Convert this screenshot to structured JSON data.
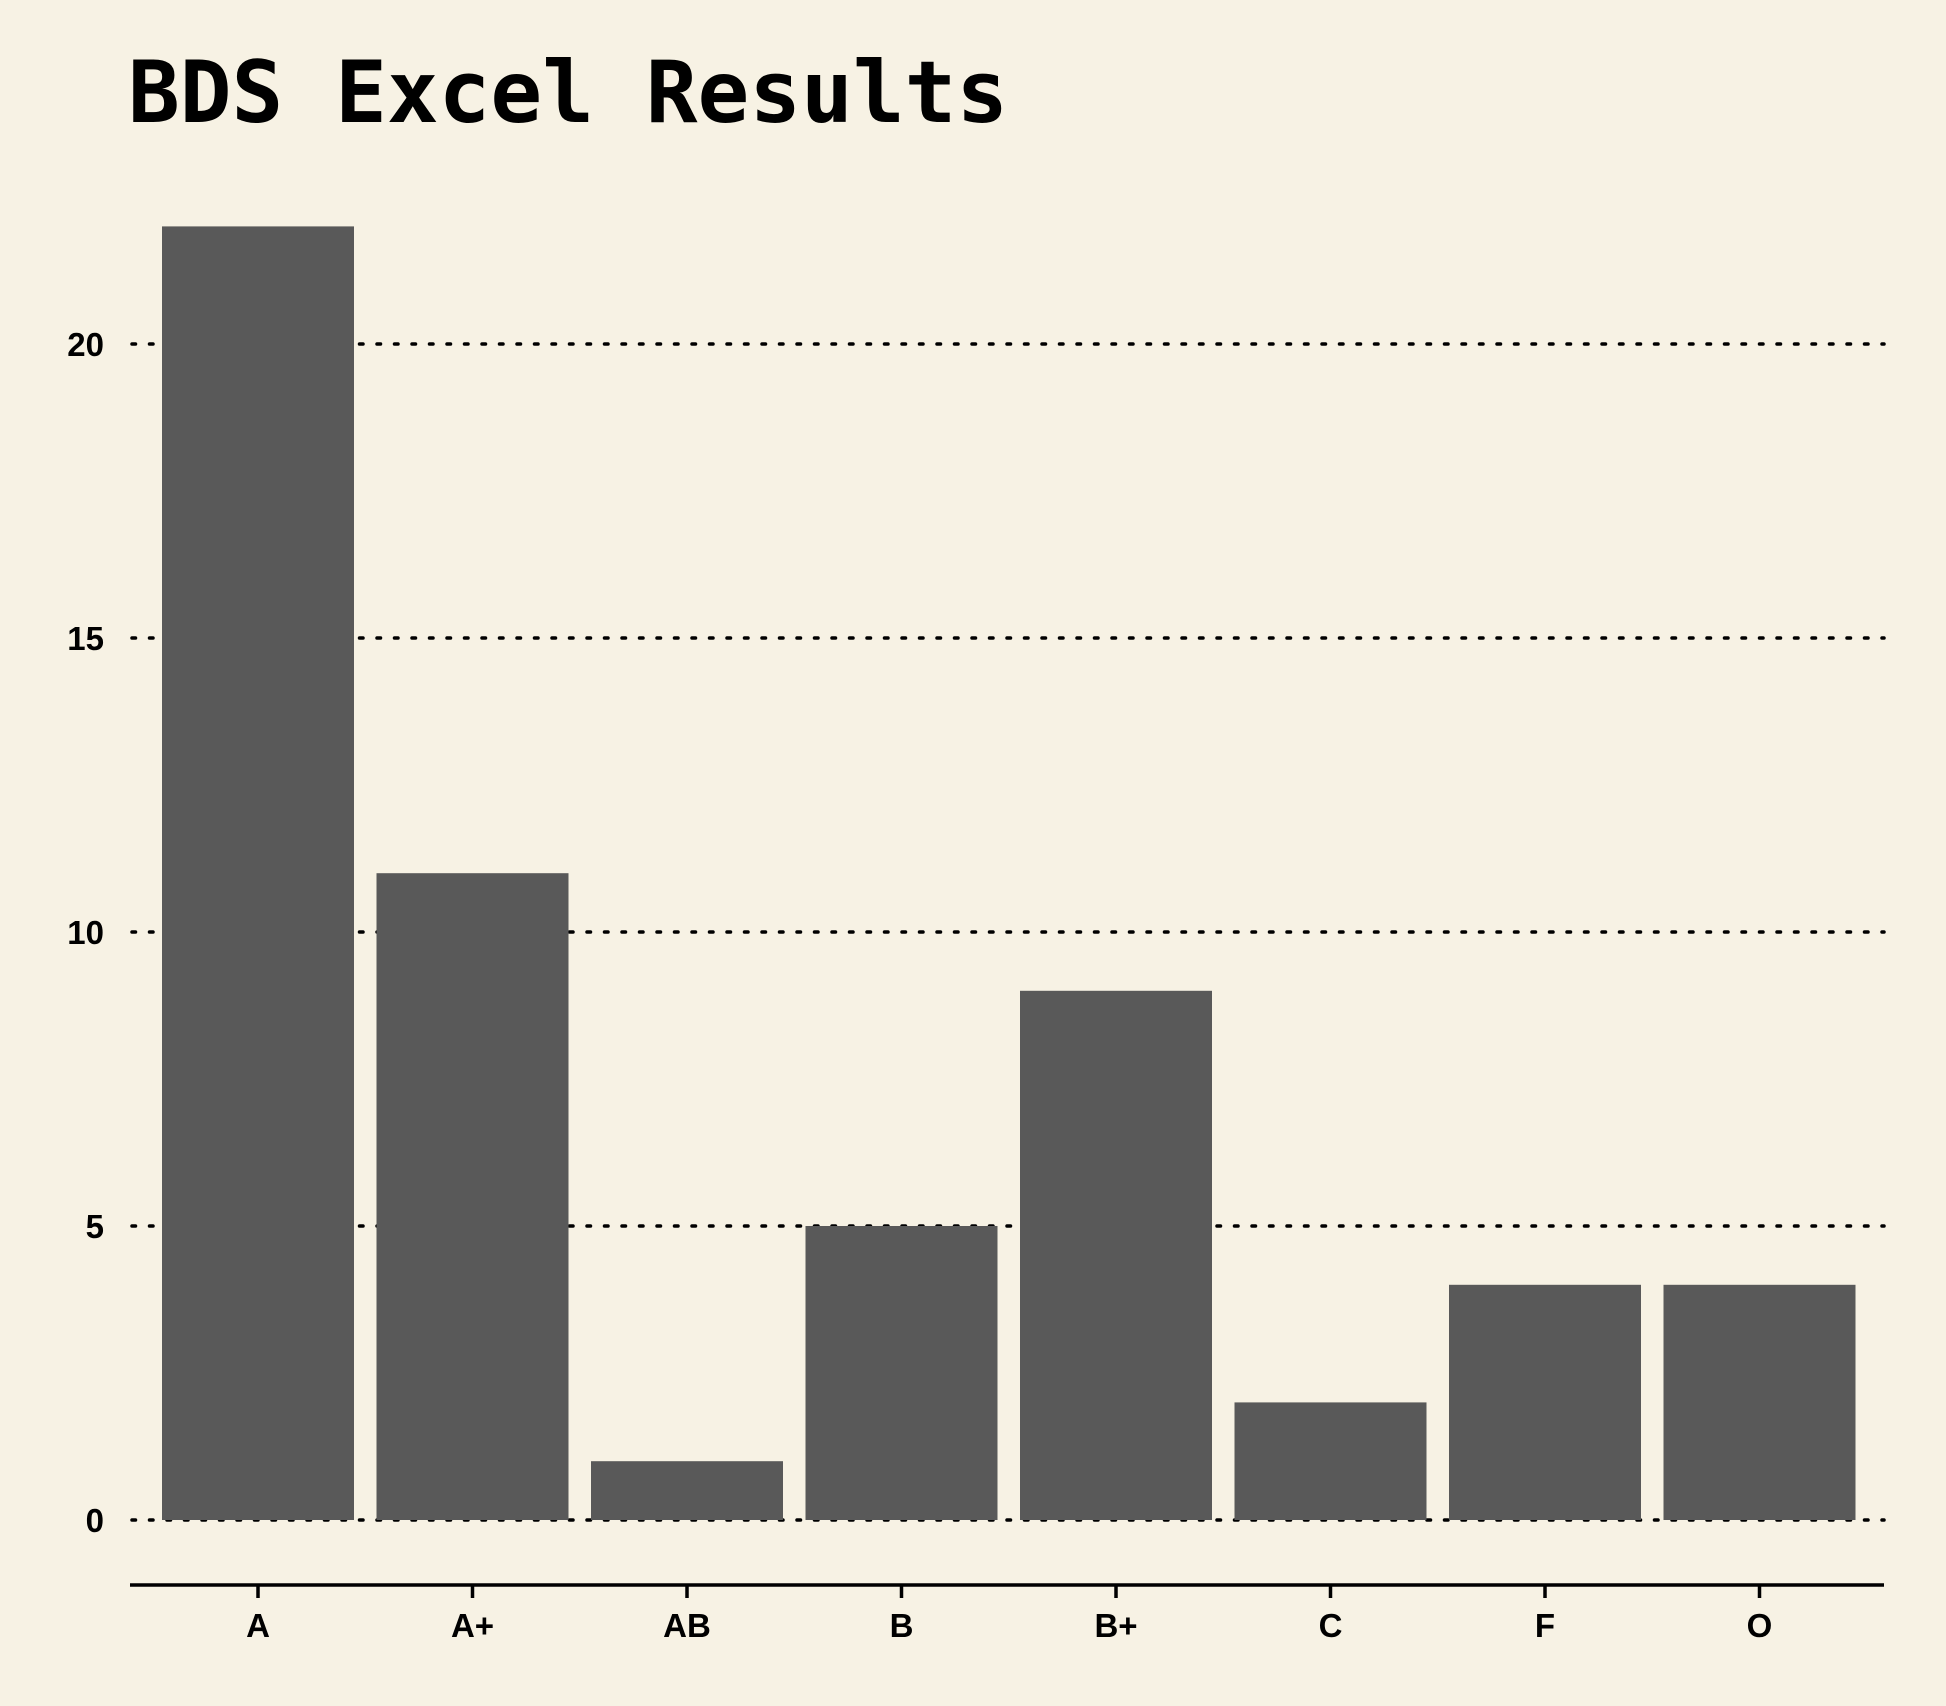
{
  "chart_data": {
    "type": "bar",
    "title": "BDS Excel Results",
    "xlabel": "",
    "ylabel": "",
    "categories": [
      "A",
      "A+",
      "AB",
      "B",
      "B+",
      "C",
      "F",
      "O"
    ],
    "values": [
      22,
      11,
      1,
      5,
      9,
      2,
      4,
      4
    ],
    "ylim": [
      0,
      22
    ],
    "yticks": [
      0,
      5,
      10,
      15,
      20
    ],
    "grid": "horizontal dotted",
    "legend": "none",
    "colors": {
      "background": "#f7f2e4",
      "bar": "#595959",
      "text": "#000000"
    }
  }
}
